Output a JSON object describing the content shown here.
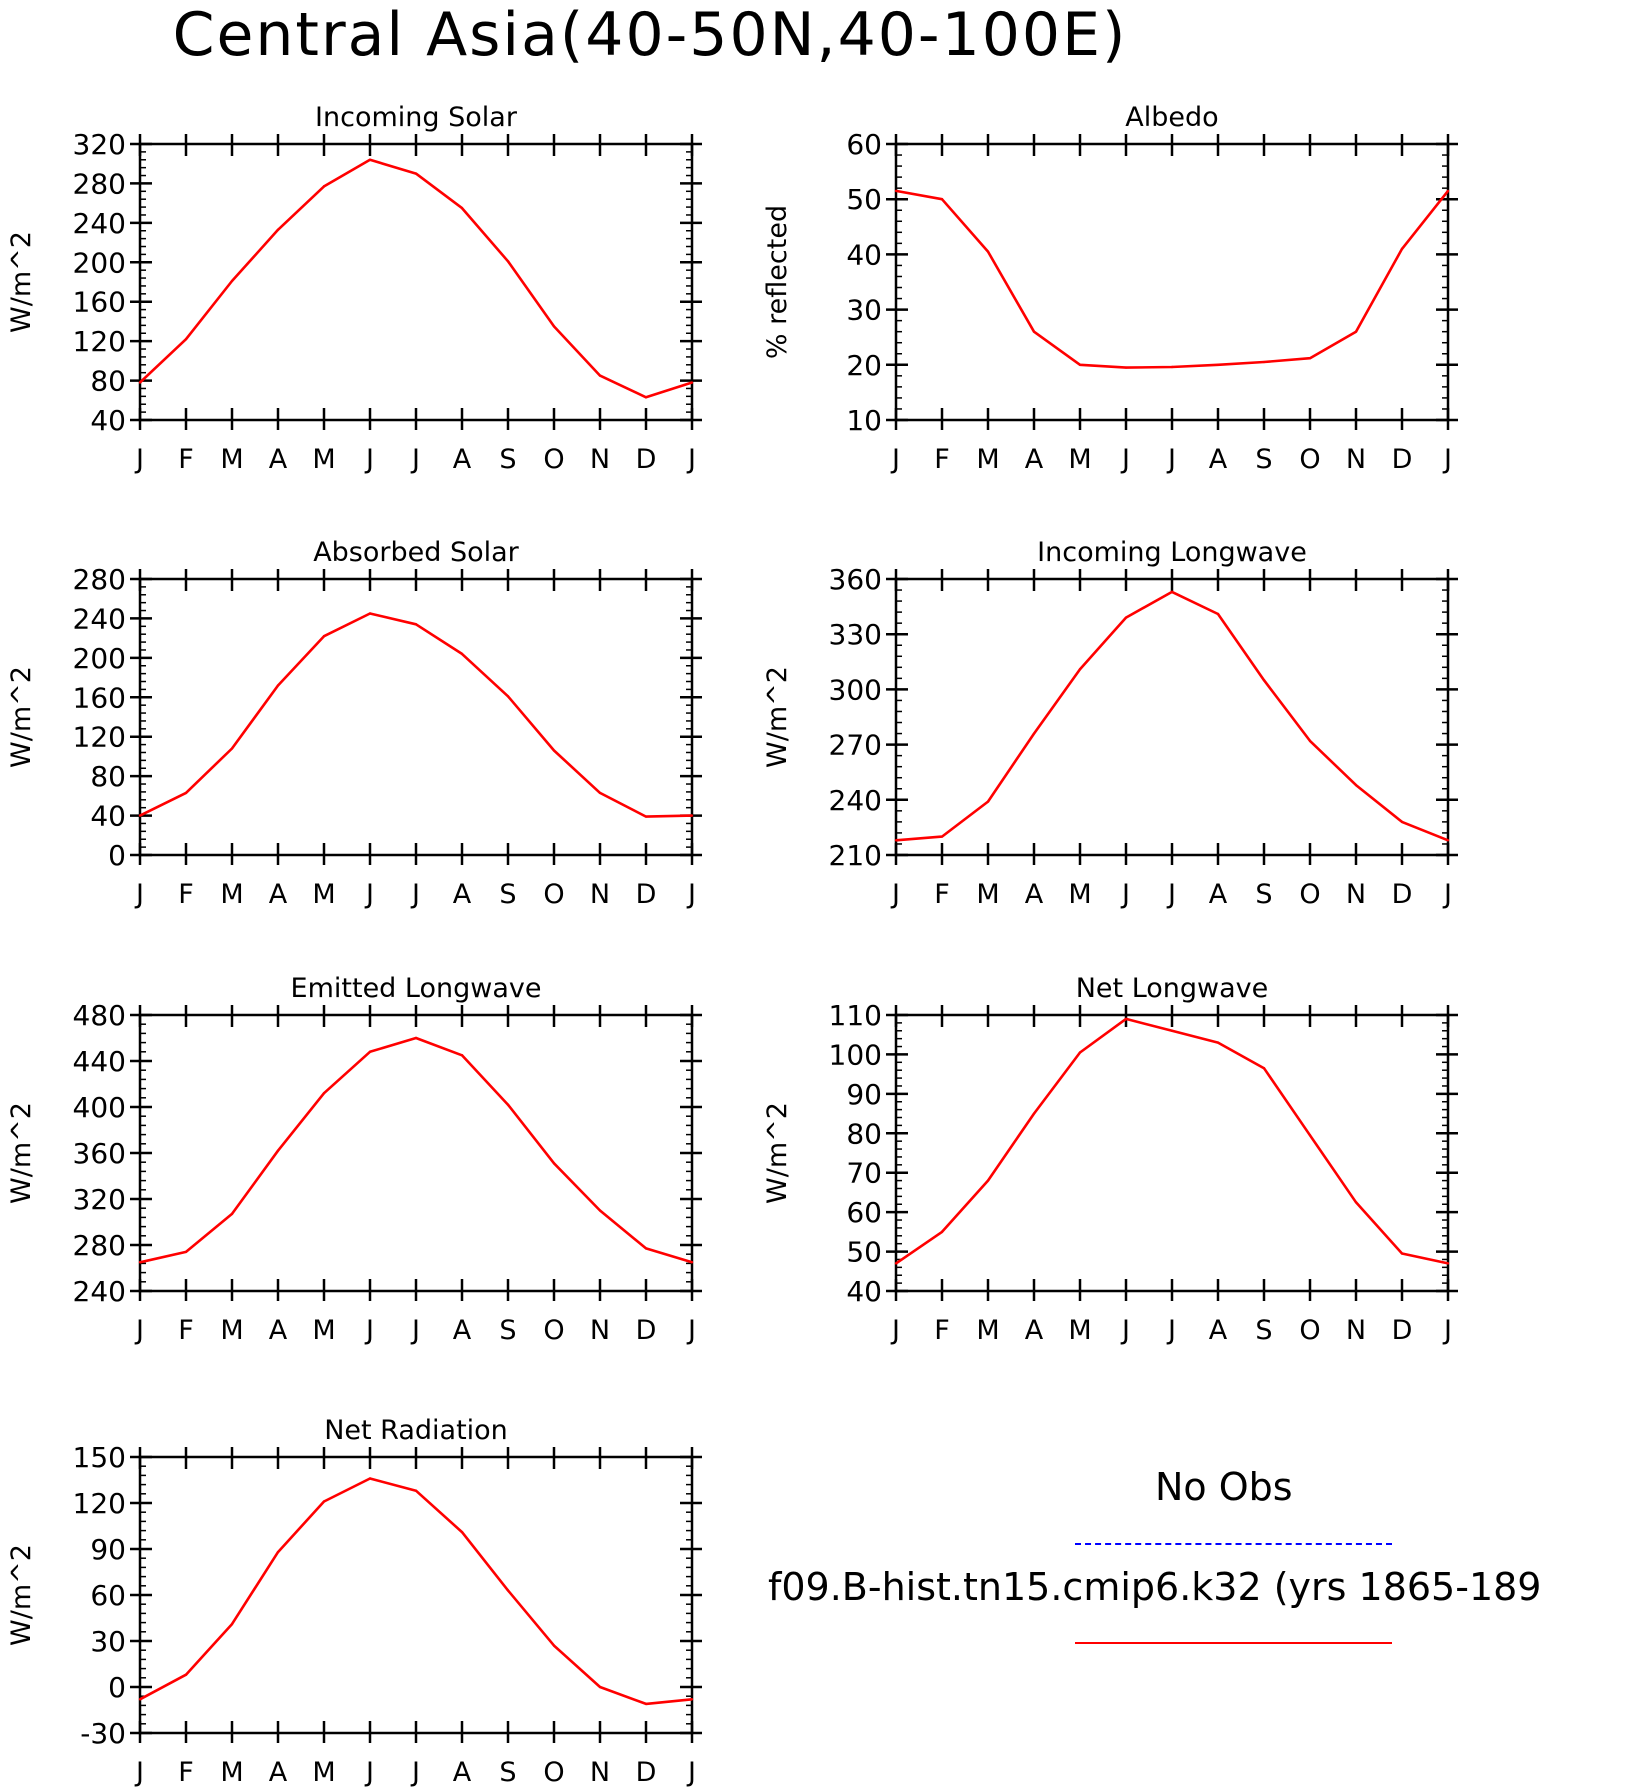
{
  "page": {
    "title": "Central Asia(40-50N,40-100E)"
  },
  "colors": {
    "model": "#ff0000",
    "obs": "#0000ff",
    "axis": "#000000"
  },
  "legend": {
    "obs_label": "No Obs",
    "model_label": "f09.B-hist.tn15.cmip6.k32 (yrs 1865-189"
  },
  "chart_data": [
    {
      "type": "line",
      "title": "Incoming Solar",
      "ylabel": "W/m^2",
      "xlabel": "",
      "categories": [
        "J",
        "F",
        "M",
        "A",
        "M",
        "J",
        "J",
        "A",
        "S",
        "O",
        "N",
        "D",
        "J"
      ],
      "ylim": [
        40,
        320
      ],
      "yticks": [
        40,
        80,
        120,
        160,
        200,
        240,
        280,
        320
      ],
      "grid": false,
      "series": [
        {
          "values": [
            78,
            122,
            181,
            233,
            277,
            304,
            290,
            255,
            201,
            135,
            85,
            63,
            78
          ]
        }
      ]
    },
    {
      "type": "line",
      "title": "Albedo",
      "ylabel": "% reflected",
      "xlabel": "",
      "categories": [
        "J",
        "F",
        "M",
        "A",
        "M",
        "J",
        "J",
        "A",
        "S",
        "O",
        "N",
        "D",
        "J"
      ],
      "ylim": [
        10,
        60
      ],
      "yticks": [
        10,
        20,
        30,
        40,
        50,
        60
      ],
      "grid": false,
      "series": [
        {
          "values": [
            51.5,
            50,
            40.5,
            26,
            20,
            19.5,
            19.6,
            20,
            20.5,
            21.2,
            26,
            41,
            51.5
          ]
        }
      ]
    },
    {
      "type": "line",
      "title": "Absorbed Solar",
      "ylabel": "W/m^2",
      "xlabel": "",
      "categories": [
        "J",
        "F",
        "M",
        "A",
        "M",
        "J",
        "J",
        "A",
        "S",
        "O",
        "N",
        "D",
        "J"
      ],
      "ylim": [
        0,
        280
      ],
      "yticks": [
        0,
        40,
        80,
        120,
        160,
        200,
        240,
        280
      ],
      "grid": false,
      "series": [
        {
          "values": [
            40,
            63,
            108,
            172,
            222,
            245,
            234,
            204,
            161,
            106,
            63,
            39,
            40
          ]
        }
      ]
    },
    {
      "type": "line",
      "title": "Incoming Longwave",
      "ylabel": "W/m^2",
      "xlabel": "",
      "categories": [
        "J",
        "F",
        "M",
        "A",
        "M",
        "J",
        "J",
        "A",
        "S",
        "O",
        "N",
        "D",
        "J"
      ],
      "ylim": [
        210,
        360
      ],
      "yticks": [
        210,
        240,
        270,
        300,
        330,
        360
      ],
      "grid": false,
      "series": [
        {
          "values": [
            218,
            220,
            239,
            276,
            311,
            339,
            353,
            341,
            305,
            272,
            248,
            228,
            218
          ]
        }
      ]
    },
    {
      "type": "line",
      "title": "Emitted Longwave",
      "ylabel": "W/m^2",
      "xlabel": "",
      "categories": [
        "J",
        "F",
        "M",
        "A",
        "M",
        "J",
        "J",
        "A",
        "S",
        "O",
        "N",
        "D",
        "J"
      ],
      "ylim": [
        240,
        480
      ],
      "yticks": [
        240,
        280,
        320,
        360,
        400,
        440,
        480
      ],
      "grid": false,
      "series": [
        {
          "values": [
            265,
            274,
            307,
            362,
            412,
            448,
            460,
            445,
            402,
            351,
            310,
            277,
            265
          ]
        }
      ]
    },
    {
      "type": "line",
      "title": "Net Longwave",
      "ylabel": "W/m^2",
      "xlabel": "",
      "categories": [
        "J",
        "F",
        "M",
        "A",
        "M",
        "J",
        "J",
        "A",
        "S",
        "O",
        "N",
        "D",
        "J"
      ],
      "ylim": [
        40,
        110
      ],
      "yticks": [
        40,
        50,
        60,
        70,
        80,
        90,
        100,
        110
      ],
      "grid": false,
      "series": [
        {
          "values": [
            47,
            55,
            68,
            85,
            100.5,
            109,
            106,
            103,
            96.5,
            79.5,
            62.5,
            49.5,
            47
          ]
        }
      ]
    },
    {
      "type": "line",
      "title": "Net Radiation",
      "ylabel": "W/m^2",
      "xlabel": "",
      "categories": [
        "J",
        "F",
        "M",
        "A",
        "M",
        "J",
        "J",
        "A",
        "S",
        "O",
        "N",
        "D",
        "J"
      ],
      "ylim": [
        -30,
        150
      ],
      "yticks": [
        -30,
        0,
        30,
        60,
        90,
        120,
        150
      ],
      "grid": false,
      "series": [
        {
          "values": [
            -8,
            8,
            41,
            88,
            121,
            136,
            128,
            101,
            63,
            27,
            0,
            -11,
            -8
          ]
        }
      ]
    }
  ]
}
